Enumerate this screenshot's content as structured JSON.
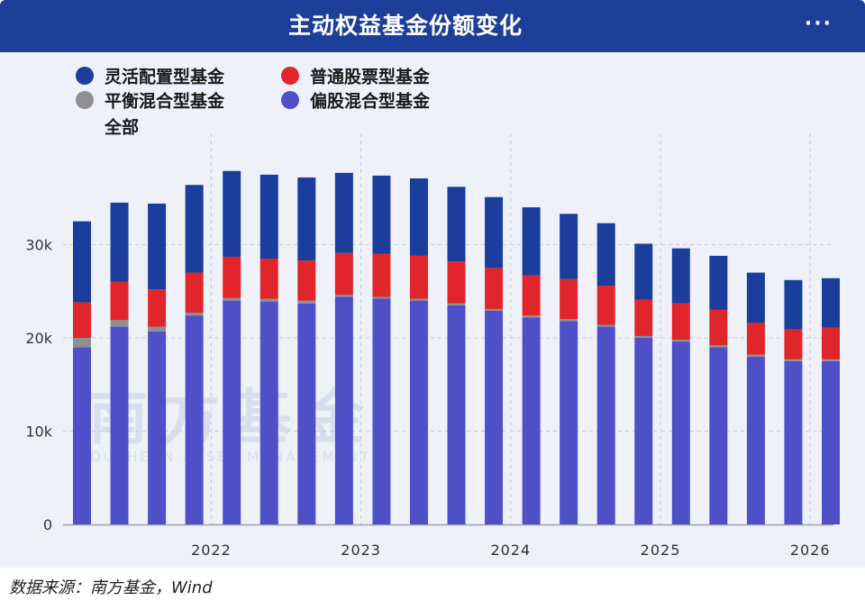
{
  "header": {
    "title": "主动权益基金份额变化",
    "more_label": "···"
  },
  "legend": {
    "items": [
      {
        "label": "灵活配置型基金",
        "color": "#1b3e9c"
      },
      {
        "label": "普通股票型基金",
        "color": "#e0262b"
      },
      {
        "label": "平衡混合型基金",
        "color": "#8f8f8f"
      },
      {
        "label": "偏股混合型基金",
        "color": "#4f4fc8"
      },
      {
        "label": "全部"
      }
    ]
  },
  "chart_data": {
    "type": "bar",
    "stacked": true,
    "title": "主动权益基金份额变化",
    "xlabel": "",
    "ylabel": "",
    "ylim": [
      0,
      40000
    ],
    "yticks": [
      {
        "value": 0,
        "label": "0"
      },
      {
        "value": 10000,
        "label": "10k"
      },
      {
        "value": 20000,
        "label": "20k"
      },
      {
        "value": 30000,
        "label": "30k"
      }
    ],
    "xticks": [
      {
        "index": 3,
        "label": "2022"
      },
      {
        "index": 7,
        "label": "2023"
      },
      {
        "index": 11,
        "label": "2024"
      },
      {
        "index": 15,
        "label": "2025"
      },
      {
        "index": 19,
        "label": "2026"
      }
    ],
    "grid": true,
    "legend_position": "top-left",
    "categories": [
      "",
      "",
      "",
      "",
      "",
      "",
      "",
      "",
      "",
      "",
      "",
      "",
      "",
      "",
      "",
      "",
      "",
      "",
      "",
      "",
      ""
    ],
    "series": [
      {
        "name": "偏股混合型基金",
        "color": "#4f4fc8",
        "values": [
          19000,
          21200,
          20700,
          22400,
          24000,
          23900,
          23700,
          24400,
          24200,
          24000,
          23500,
          22900,
          22200,
          21800,
          21200,
          20000,
          19600,
          19000,
          18000,
          17500,
          17500
        ]
      },
      {
        "name": "平衡混合型基金",
        "color": "#8f8f8f",
        "values": [
          1000,
          700,
          500,
          300,
          300,
          300,
          300,
          200,
          200,
          200,
          200,
          200,
          200,
          200,
          200,
          200,
          200,
          200,
          200,
          200,
          200
        ]
      },
      {
        "name": "普通股票型基金",
        "color": "#e0262b",
        "values": [
          3800,
          4100,
          4000,
          4300,
          4400,
          4300,
          4300,
          4500,
          4600,
          4600,
          4500,
          4400,
          4300,
          4300,
          4200,
          3900,
          3900,
          3800,
          3400,
          3200,
          3400
        ]
      },
      {
        "name": "灵活配置型基金",
        "color": "#1b3e9c",
        "values": [
          8700,
          8500,
          9200,
          9400,
          9200,
          9000,
          8900,
          8600,
          8400,
          8300,
          8000,
          7600,
          7300,
          7000,
          6700,
          6000,
          5900,
          5800,
          5400,
          5300,
          5300
        ]
      }
    ]
  },
  "source": {
    "text": "数据来源：南方基金，Wind"
  },
  "watermark": {
    "text": "南方基金",
    "sub": "OUTHERN ASSET MANAGEMENT"
  }
}
